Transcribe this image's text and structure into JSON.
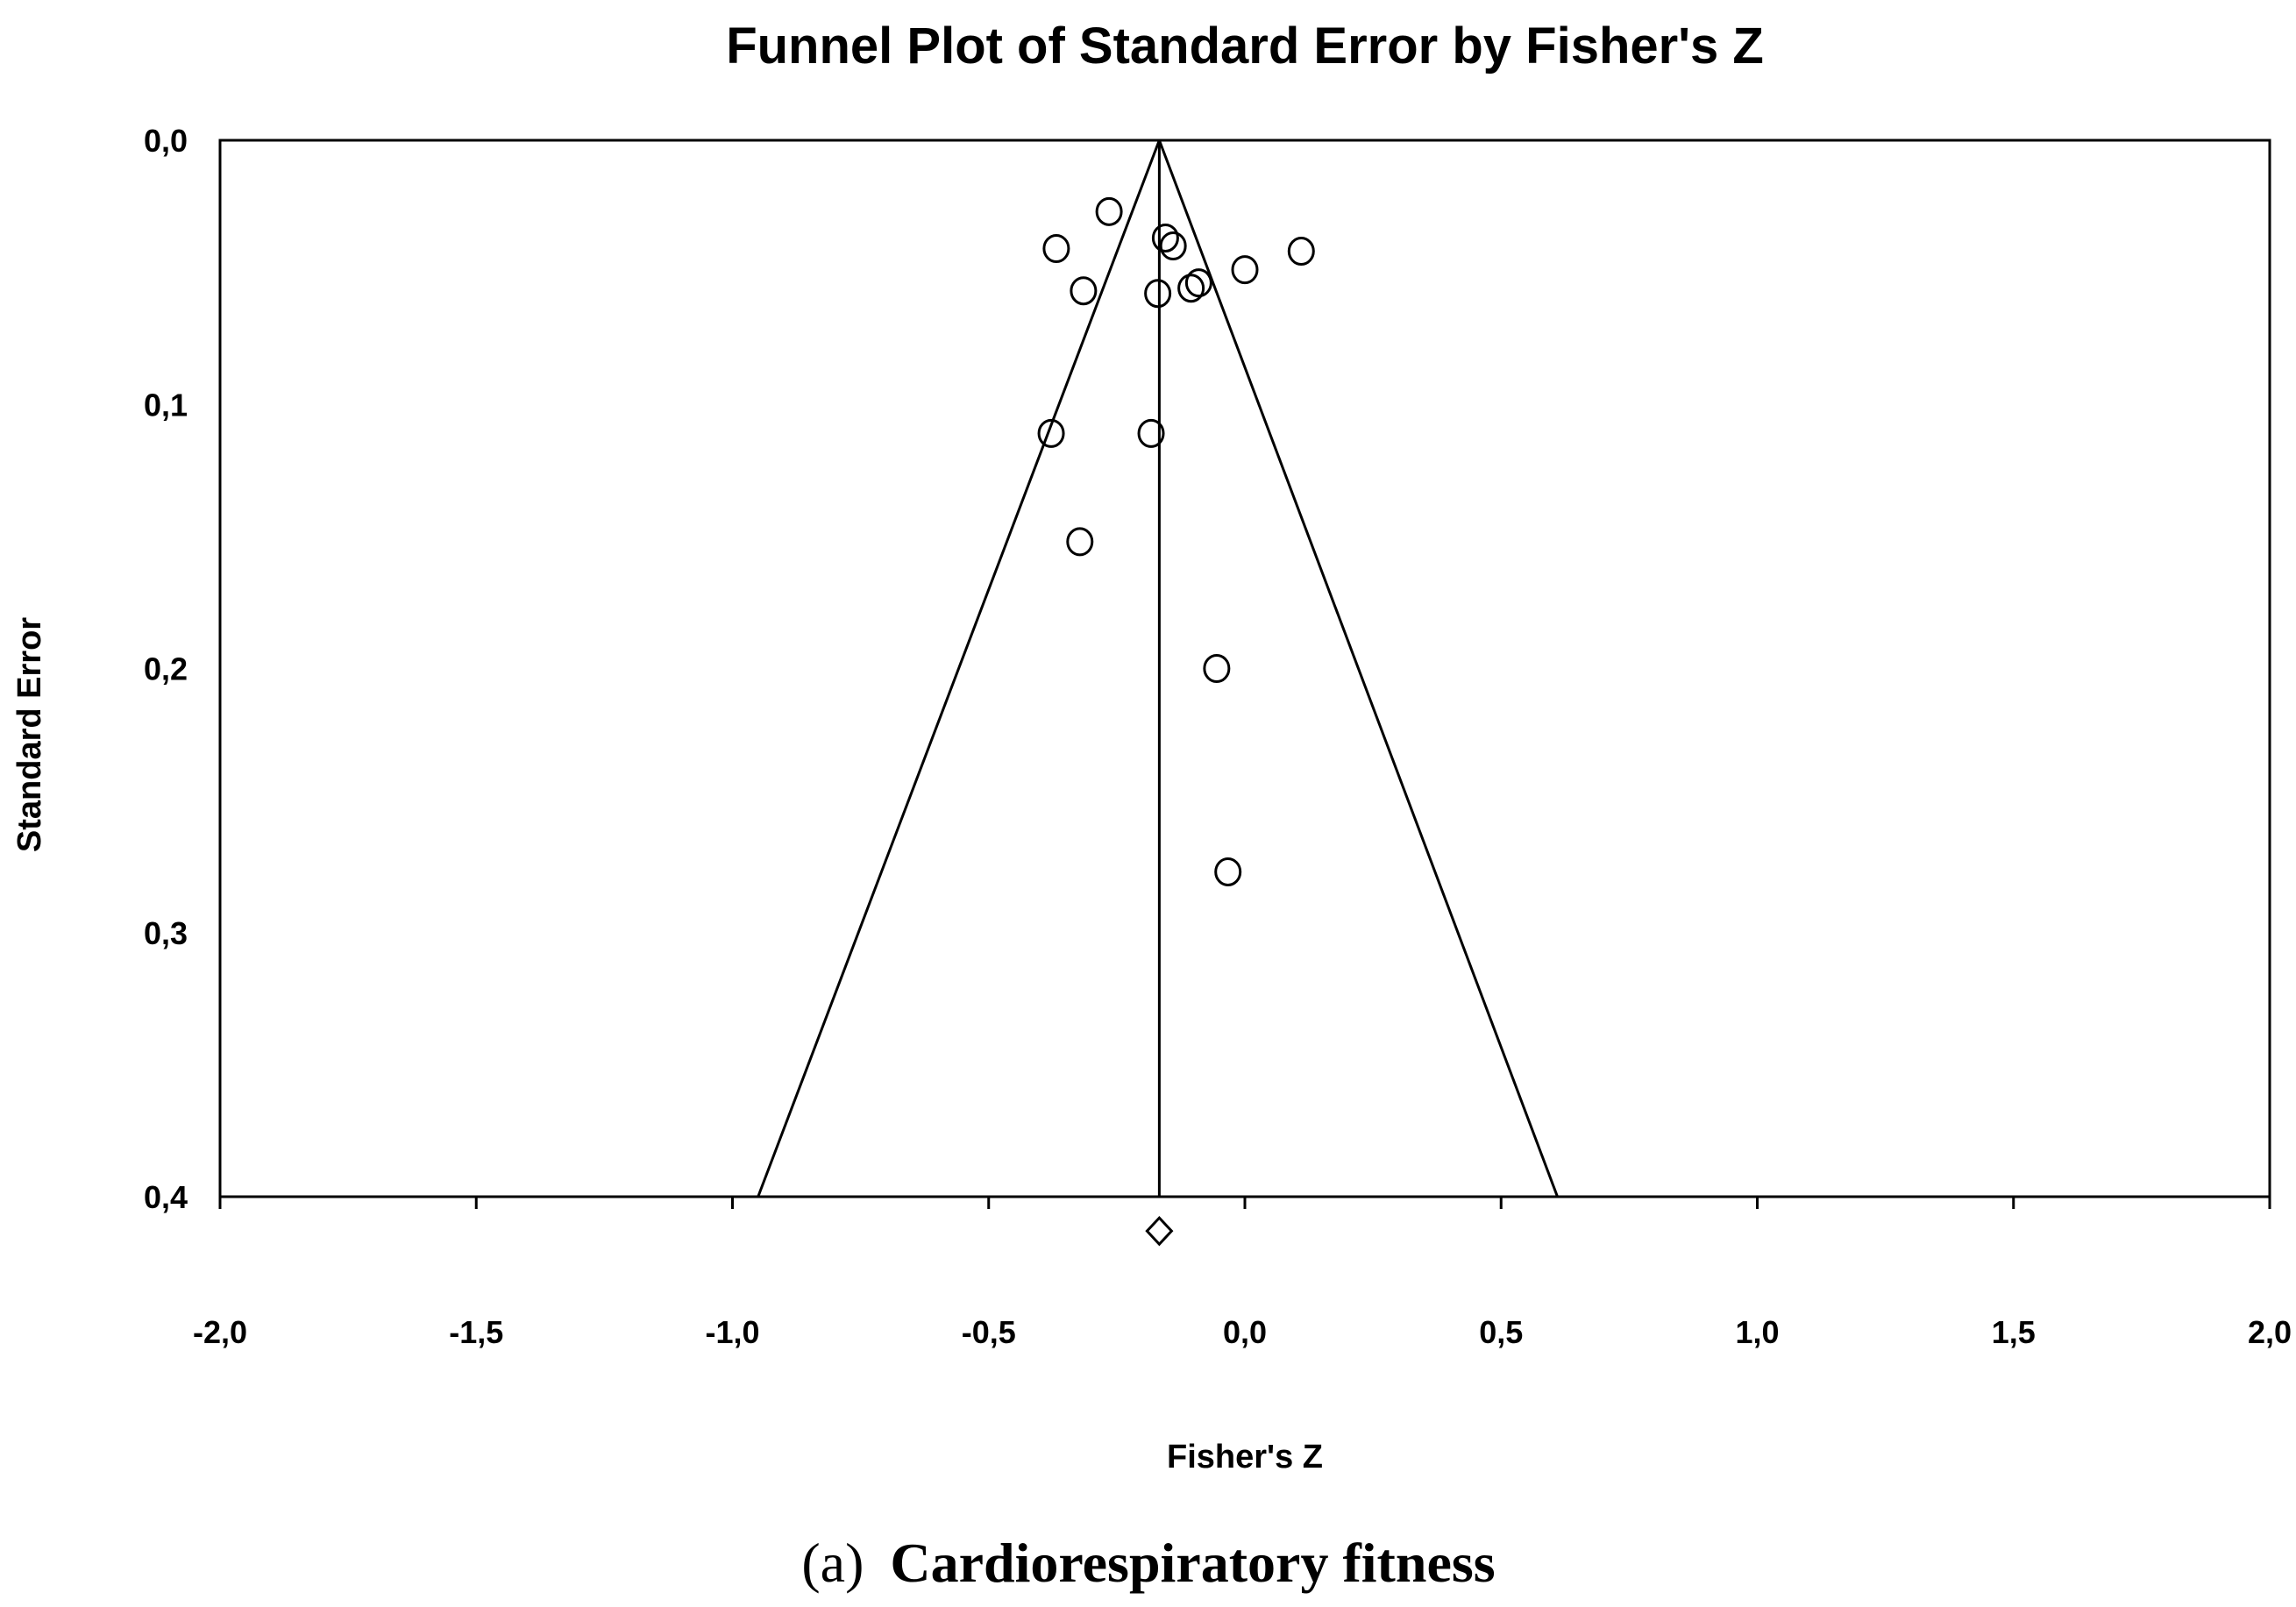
{
  "chart_data": {
    "type": "scatter",
    "title": "Funnel Plot of Standard Error by Fisher's Z",
    "xlabel": "Fisher's Z",
    "ylabel": "Standard Error",
    "xlim": [
      -2.0,
      2.0
    ],
    "ylim": [
      0.0,
      0.4
    ],
    "y_inverted": true,
    "x_ticks": [
      "-2,0",
      "-1,5",
      "-1,0",
      "-0,5",
      "0,0",
      "0,5",
      "1,0",
      "1,5",
      "2,0"
    ],
    "y_ticks": [
      "0,0",
      "0,1",
      "0,2",
      "0,3",
      "0,4"
    ],
    "grid": false,
    "mean_effect": -0.167,
    "funnel": {
      "apex": [
        -0.167,
        0.0
      ],
      "left_base": [
        -0.95,
        0.4
      ],
      "right_base": [
        0.61,
        0.4
      ]
    },
    "summary_diamond": {
      "x": -0.167,
      "y": 0.413
    },
    "points": [
      {
        "x": -0.265,
        "y": 0.027
      },
      {
        "x": -0.155,
        "y": 0.037
      },
      {
        "x": -0.368,
        "y": 0.041
      },
      {
        "x": -0.14,
        "y": 0.04
      },
      {
        "x": 0.11,
        "y": 0.042
      },
      {
        "x": 0.0,
        "y": 0.049
      },
      {
        "x": -0.315,
        "y": 0.057
      },
      {
        "x": -0.17,
        "y": 0.058
      },
      {
        "x": -0.105,
        "y": 0.056
      },
      {
        "x": -0.09,
        "y": 0.054
      },
      {
        "x": -0.378,
        "y": 0.111
      },
      {
        "x": -0.183,
        "y": 0.111
      },
      {
        "x": -0.322,
        "y": 0.152
      },
      {
        "x": -0.055,
        "y": 0.2
      },
      {
        "x": -0.033,
        "y": 0.277
      }
    ]
  },
  "caption": {
    "letter": "(a)",
    "text": "Cardiorespiratory fitness"
  }
}
